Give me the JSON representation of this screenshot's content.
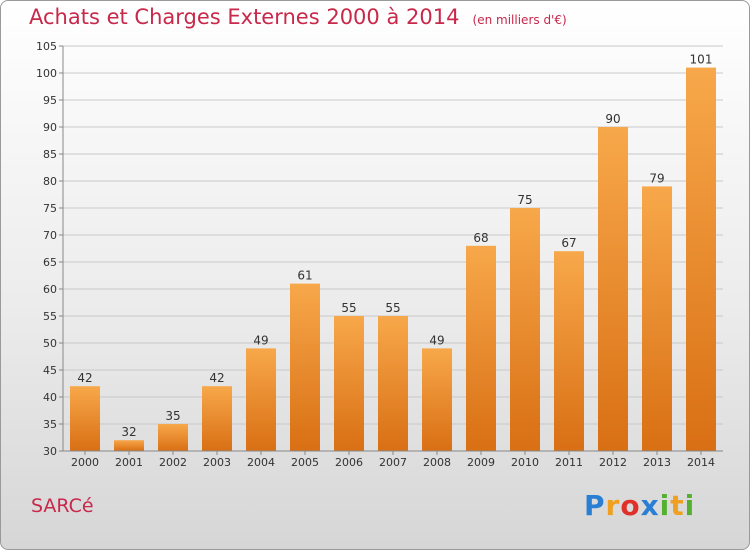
{
  "title": "Achats et Charges Externes 2000 à 2014",
  "unit_note": "(en milliers d'€)",
  "commune": "SARCé",
  "logo": {
    "letters": [
      "P",
      "r",
      "o",
      "x",
      "i",
      "t",
      "i"
    ],
    "colors": [
      "#2a7fd4",
      "#f0a020",
      "#e0302a",
      "#2a7fd4",
      "#55b030",
      "#f0a020",
      "#55b030"
    ]
  },
  "chart_data": {
    "type": "bar",
    "categories": [
      "2000",
      "2001",
      "2002",
      "2003",
      "2004",
      "2005",
      "2006",
      "2007",
      "2008",
      "2009",
      "2010",
      "2011",
      "2012",
      "2013",
      "2014"
    ],
    "values": [
      42,
      32,
      35,
      42,
      49,
      61,
      55,
      55,
      49,
      68,
      75,
      67,
      90,
      79,
      101
    ],
    "ylim": [
      30,
      105
    ],
    "yticks": [
      30,
      35,
      40,
      45,
      50,
      55,
      60,
      65,
      70,
      75,
      80,
      85,
      90,
      95,
      100,
      105
    ],
    "grid": true,
    "bar_color": "#f39a3c"
  }
}
